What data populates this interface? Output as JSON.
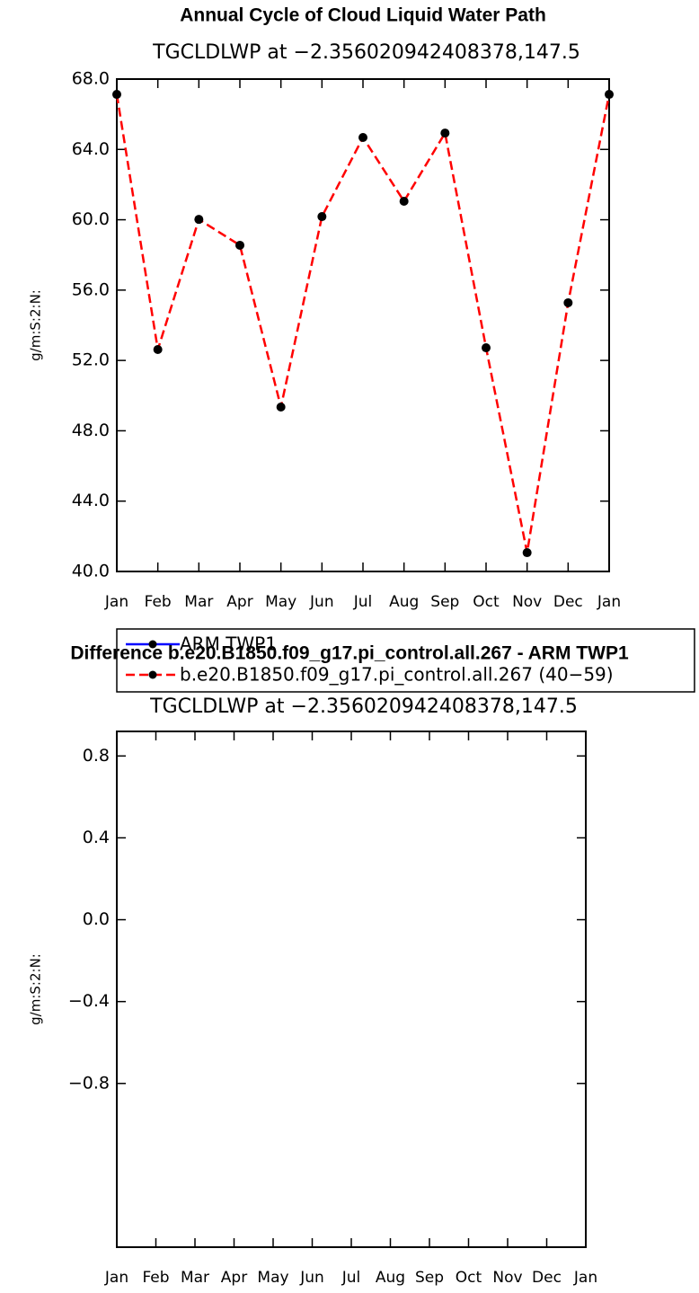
{
  "chart_data": [
    {
      "type": "line",
      "title": "Annual Cycle of Cloud Liquid Water Path",
      "subtitle": "TGCLDLWP at −2.356020942408378,147.5",
      "y_label": "g/m:S:2:N:",
      "categories": [
        "Jan",
        "Feb",
        "Mar",
        "Apr",
        "May",
        "Jun",
        "Jul",
        "Aug",
        "Sep",
        "Oct",
        "Nov",
        "Dec",
        "Jan"
      ],
      "series": [
        {
          "name": "ARM TWP1",
          "color": "#0000ff",
          "dashed": false,
          "values": [
            null,
            null,
            null,
            null,
            null,
            null,
            null,
            null,
            null,
            null,
            null,
            null,
            null
          ]
        },
        {
          "name": "b.e20.B1850.f09_g17.pi_control.all.267 (40−59)",
          "color": "#ff0000",
          "dashed": true,
          "values": [
            67.13,
            52.62,
            60.02,
            58.55,
            49.35,
            60.18,
            64.68,
            61.05,
            64.93,
            52.72,
            41.07,
            55.28,
            67.13
          ]
        }
      ],
      "ylim": [
        40,
        68
      ],
      "yticks": [
        {
          "value": 40,
          "label": "40.0"
        },
        {
          "value": 44,
          "label": "44.0"
        },
        {
          "value": 48,
          "label": "48.0"
        },
        {
          "value": 52,
          "label": "52.0"
        },
        {
          "value": 56,
          "label": "56.0"
        },
        {
          "value": 60,
          "label": "60.0"
        },
        {
          "value": 64,
          "label": "64.0"
        },
        {
          "value": 68,
          "label": "68.0"
        }
      ]
    },
    {
      "type": "line",
      "title": "Difference b.e20.B1850.f09_g17.pi_control.all.267 - ARM TWP1",
      "subtitle": "TGCLDLWP at −2.356020942408378,147.5",
      "y_label": "g/m:S:2:N:",
      "categories": [
        "Jan",
        "Feb",
        "Mar",
        "Apr",
        "May",
        "Jun",
        "Jul",
        "Aug",
        "Sep",
        "Oct",
        "Nov",
        "Dec",
        "Jan"
      ],
      "ylim": [
        -1.6,
        0.92
      ],
      "yticks": [
        {
          "value": -0.8,
          "label": "−0.8"
        },
        {
          "value": -0.4,
          "label": "−0.4"
        },
        {
          "value": 0,
          "label": "0.0"
        },
        {
          "value": 0.4,
          "label": "0.4"
        },
        {
          "value": 0.8,
          "label": "0.8"
        }
      ]
    }
  ]
}
